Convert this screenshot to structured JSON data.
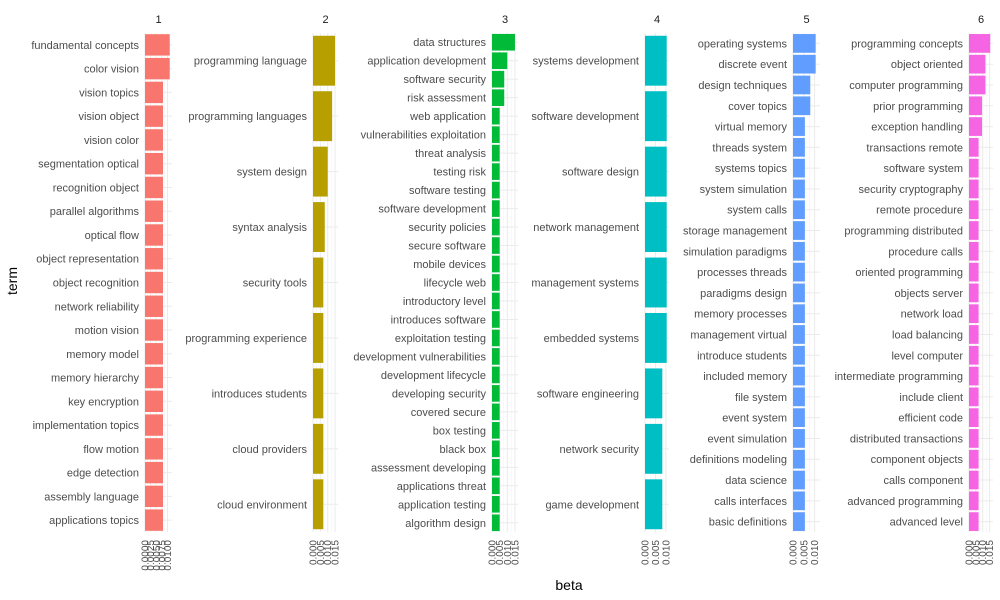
{
  "chart_data": {
    "type": "bar",
    "orientation": "horizontal",
    "xlabel": "beta",
    "ylabel": "term",
    "grid": true,
    "legend": "none",
    "facets": [
      {
        "strip": "1",
        "color": "#F8766D",
        "xlim": [
          0,
          0.012
        ],
        "ticks": [
          "0.0000",
          "0.0025",
          "0.0050",
          "0.0075",
          "0.0100"
        ],
        "tick_values": [
          0,
          0.0025,
          0.005,
          0.0075,
          0.01
        ],
        "terms": [
          "fundamental concepts",
          "color vision",
          "vision topics",
          "vision object",
          "vision color",
          "segmentation optical",
          "recognition object",
          "parallel algorithms",
          "optical flow",
          "object representation",
          "object recognition",
          "network reliability",
          "motion vision",
          "memory model",
          "memory hierarchy",
          "key encryption",
          "implementation topics",
          "flow motion",
          "edge detection",
          "assembly language",
          "applications topics"
        ],
        "values": [
          0.011,
          0.011,
          0.008,
          0.008,
          0.008,
          0.008,
          0.008,
          0.008,
          0.008,
          0.008,
          0.008,
          0.008,
          0.008,
          0.008,
          0.008,
          0.008,
          0.008,
          0.008,
          0.008,
          0.008,
          0.008
        ]
      },
      {
        "strip": "2",
        "color": "#B79F00",
        "xlim": [
          0,
          0.017
        ],
        "ticks": [
          "0.000",
          "0.005",
          "0.010",
          "0.015"
        ],
        "tick_values": [
          0,
          0.005,
          0.01,
          0.015
        ],
        "terms": [
          "programming language",
          "programming languages",
          "system design",
          "syntax analysis",
          "security tools",
          "programming experience",
          "introduces students",
          "cloud providers",
          "cloud environment"
        ],
        "values": [
          0.015,
          0.013,
          0.01,
          0.008,
          0.007,
          0.007,
          0.007,
          0.007,
          0.007
        ]
      },
      {
        "strip": "3",
        "color": "#00BA38",
        "xlim": [
          0,
          0.017
        ],
        "ticks": [
          "0.000",
          "0.005",
          "0.010",
          "0.015"
        ],
        "tick_values": [
          0,
          0.005,
          0.01,
          0.015
        ],
        "terms": [
          "data structures",
          "application development",
          "software security",
          "risk assessment",
          "web application",
          "vulnerabilities exploitation",
          "threat analysis",
          "testing risk",
          "software testing",
          "software development",
          "security policies",
          "secure software",
          "mobile devices",
          "lifecycle web",
          "introductory level",
          "introduces software",
          "exploitation testing",
          "development vulnerabilities",
          "development lifecycle",
          "developing security",
          "covered secure",
          "box testing",
          "black box",
          "assessment developing",
          "applications threat",
          "application testing",
          "algorithm design"
        ],
        "values": [
          0.015,
          0.01,
          0.008,
          0.008,
          0.005,
          0.005,
          0.005,
          0.005,
          0.005,
          0.005,
          0.005,
          0.005,
          0.005,
          0.005,
          0.005,
          0.005,
          0.005,
          0.005,
          0.005,
          0.005,
          0.005,
          0.005,
          0.005,
          0.005,
          0.005,
          0.005,
          0.005
        ]
      },
      {
        "strip": "4",
        "color": "#00BFC4",
        "xlim": [
          0,
          0.0115
        ],
        "ticks": [
          "0.000",
          "0.005",
          "0.010"
        ],
        "tick_values": [
          0,
          0.005,
          0.01
        ],
        "terms": [
          "systems development",
          "software development",
          "software design",
          "network management",
          "management systems",
          "embedded systems",
          "software engineering",
          "network security",
          "game development"
        ],
        "values": [
          0.0104,
          0.0104,
          0.0104,
          0.0104,
          0.0104,
          0.0104,
          0.0083,
          0.0083,
          0.0083
        ]
      },
      {
        "strip": "5",
        "color": "#619CFF",
        "xlim": [
          0,
          0.0125
        ],
        "ticks": [
          "0.000",
          "0.005",
          "0.010"
        ],
        "tick_values": [
          0,
          0.005,
          0.01
        ],
        "terms": [
          "operating systems",
          "discrete event",
          "design techniques",
          "cover topics",
          "virtual memory",
          "threads system",
          "systems topics",
          "system simulation",
          "system calls",
          "storage management",
          "simulation paradigms",
          "processes threads",
          "paradigms design",
          "memory processes",
          "management virtual",
          "introduce students",
          "included memory",
          "file system",
          "event system",
          "event simulation",
          "definitions modeling",
          "data science",
          "calls interfaces",
          "basic definitions"
        ],
        "values": [
          0.0105,
          0.0105,
          0.008,
          0.008,
          0.0055,
          0.0055,
          0.0055,
          0.0055,
          0.0055,
          0.0055,
          0.0055,
          0.0055,
          0.0055,
          0.0055,
          0.0055,
          0.0055,
          0.0055,
          0.0055,
          0.0055,
          0.0055,
          0.0055,
          0.0055,
          0.0055,
          0.0055
        ]
      },
      {
        "strip": "6",
        "color": "#F564E3",
        "xlim": [
          0,
          0.0175
        ],
        "ticks": [
          "0.000",
          "0.005",
          "0.010",
          "0.015"
        ],
        "tick_values": [
          0,
          0.005,
          0.01,
          0.015
        ],
        "terms": [
          "programming concepts",
          "object oriented",
          "computer programming",
          "prior programming",
          "exception handling",
          "transactions remote",
          "software system",
          "security cryptography",
          "remote procedure",
          "programming distributed",
          "procedure calls",
          "oriented programming",
          "objects server",
          "network load",
          "load balancing",
          "level computer",
          "intermediate programming",
          "include client",
          "efficient code",
          "distributed transactions",
          "component objects",
          "calls component",
          "advanced programming",
          "advanced level"
        ],
        "values": [
          0.0155,
          0.012,
          0.012,
          0.0095,
          0.0095,
          0.007,
          0.007,
          0.007,
          0.007,
          0.007,
          0.007,
          0.007,
          0.007,
          0.007,
          0.007,
          0.007,
          0.007,
          0.007,
          0.007,
          0.007,
          0.007,
          0.007,
          0.007,
          0.007
        ]
      }
    ]
  }
}
